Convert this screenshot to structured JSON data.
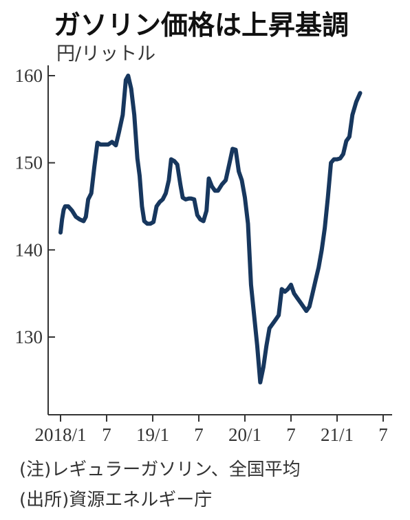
{
  "header": {
    "title": "ガソリン価格は上昇基調",
    "unit": "円/リットル"
  },
  "notes": {
    "note": "(注)レギュラーガソリン、全国平均",
    "source": "(出所)資源エネルギー庁"
  },
  "colors": {
    "line": "#17375e",
    "axis": "#333333"
  },
  "chart_data": {
    "type": "line",
    "title": "ガソリン価格は上昇基調",
    "ylabel": "円/リットル",
    "xlabel": "",
    "ylim": [
      121,
      165
    ],
    "xlim": [
      0,
      42
    ],
    "y_ticks": [
      130,
      140,
      150,
      160
    ],
    "x_ticks": [
      {
        "x": 0,
        "label": "2018/1"
      },
      {
        "x": 6,
        "label": "7"
      },
      {
        "x": 12,
        "label": "19/1"
      },
      {
        "x": 18,
        "label": "7"
      },
      {
        "x": 24,
        "label": "20/1"
      },
      {
        "x": 30,
        "label": "7"
      },
      {
        "x": 36,
        "label": "21/1"
      },
      {
        "x": 42,
        "label": "7"
      }
    ],
    "grid": false,
    "series": [
      {
        "values": [
          [
            0,
            142.0
          ],
          [
            0.2,
            143.5
          ],
          [
            0.4,
            144.6
          ],
          [
            0.6,
            145.0
          ],
          [
            1.0,
            145.0
          ],
          [
            1.5,
            144.5
          ],
          [
            2.0,
            143.8
          ],
          [
            2.5,
            143.5
          ],
          [
            3.0,
            143.3
          ],
          [
            3.3,
            143.8
          ],
          [
            3.6,
            145.8
          ],
          [
            4.0,
            146.5
          ],
          [
            4.4,
            149.5
          ],
          [
            4.8,
            152.3
          ],
          [
            5.2,
            152.1
          ],
          [
            5.7,
            152.1
          ],
          [
            6.2,
            152.1
          ],
          [
            6.7,
            152.4
          ],
          [
            7.2,
            152.0
          ],
          [
            7.6,
            153.5
          ],
          [
            8.1,
            155.5
          ],
          [
            8.5,
            159.5
          ],
          [
            8.8,
            160.0
          ],
          [
            9.2,
            158.5
          ],
          [
            9.6,
            155.5
          ],
          [
            10.0,
            150.5
          ],
          [
            10.3,
            148.5
          ],
          [
            10.6,
            145.0
          ],
          [
            10.9,
            143.3
          ],
          [
            11.3,
            143.0
          ],
          [
            11.7,
            143.0
          ],
          [
            12.1,
            143.2
          ],
          [
            12.5,
            145.0
          ],
          [
            12.9,
            145.5
          ],
          [
            13.3,
            145.8
          ],
          [
            13.7,
            146.5
          ],
          [
            14.1,
            148.0
          ],
          [
            14.4,
            150.4
          ],
          [
            14.8,
            150.2
          ],
          [
            15.2,
            149.8
          ],
          [
            15.6,
            147.5
          ],
          [
            15.9,
            146.0
          ],
          [
            16.3,
            145.8
          ],
          [
            16.7,
            145.9
          ],
          [
            17.0,
            145.9
          ],
          [
            17.4,
            145.8
          ],
          [
            17.8,
            144.0
          ],
          [
            18.2,
            143.5
          ],
          [
            18.6,
            143.3
          ],
          [
            19.0,
            144.5
          ],
          [
            19.3,
            148.2
          ],
          [
            19.7,
            147.3
          ],
          [
            20.1,
            146.8
          ],
          [
            20.5,
            146.8
          ],
          [
            21.0,
            147.5
          ],
          [
            21.5,
            148.0
          ],
          [
            22.0,
            150.0
          ],
          [
            22.4,
            151.6
          ],
          [
            22.8,
            151.5
          ],
          [
            23.2,
            149.0
          ],
          [
            23.6,
            148.0
          ],
          [
            24.0,
            146.0
          ],
          [
            24.4,
            143.0
          ],
          [
            24.8,
            136.0
          ],
          [
            25.2,
            132.5
          ],
          [
            25.6,
            129.0
          ],
          [
            26.0,
            124.8
          ],
          [
            26.4,
            126.5
          ],
          [
            26.8,
            129.0
          ],
          [
            27.2,
            131.0
          ],
          [
            27.6,
            131.5
          ],
          [
            28.0,
            132.0
          ],
          [
            28.4,
            132.5
          ],
          [
            28.8,
            135.5
          ],
          [
            29.2,
            135.2
          ],
          [
            29.6,
            135.5
          ],
          [
            30.0,
            136.0
          ],
          [
            30.4,
            135.0
          ],
          [
            30.8,
            134.5
          ],
          [
            31.2,
            134.0
          ],
          [
            31.6,
            133.5
          ],
          [
            32.0,
            133.0
          ],
          [
            32.4,
            133.5
          ],
          [
            32.8,
            135.0
          ],
          [
            33.2,
            136.5
          ],
          [
            33.6,
            138.0
          ],
          [
            34.0,
            140.0
          ],
          [
            34.4,
            142.5
          ],
          [
            34.8,
            146.0
          ],
          [
            35.2,
            150.0
          ],
          [
            35.6,
            150.4
          ],
          [
            36.0,
            150.4
          ],
          [
            36.4,
            150.5
          ],
          [
            36.8,
            151.0
          ],
          [
            37.2,
            152.5
          ],
          [
            37.6,
            153.0
          ],
          [
            38.0,
            155.5
          ],
          [
            38.5,
            157.0
          ],
          [
            39.0,
            158.0
          ]
        ]
      }
    ]
  }
}
